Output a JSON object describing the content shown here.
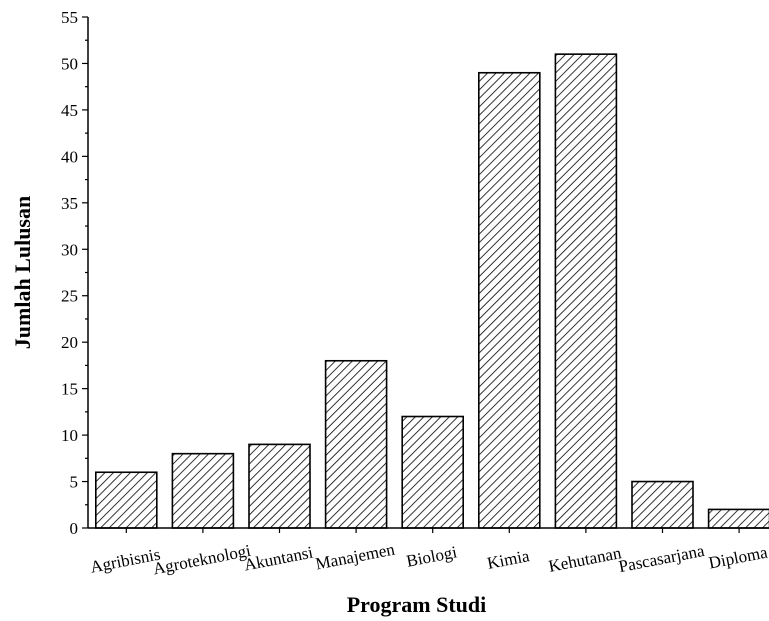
{
  "chart_data": {
    "type": "bar",
    "categories": [
      "Agribisnis",
      "Agroteknologi",
      "Akuntansi",
      "Manajemen",
      "Biologi",
      "Kimia",
      "Kehutanan",
      "Pascasarjana",
      "Diploma"
    ],
    "values": [
      6,
      8,
      9,
      18,
      12,
      49,
      51,
      5,
      2
    ],
    "xlabel": "Program Studi",
    "ylabel": "Jumlah Lulusan",
    "ylim": [
      0,
      55
    ],
    "yticks": [
      0,
      5,
      10,
      15,
      20,
      25,
      30,
      35,
      40,
      45,
      50,
      55
    ],
    "ytick_labels": [
      "0",
      "5",
      "10",
      "15",
      "20",
      "25",
      "30",
      "35",
      "40",
      "45",
      "50",
      "55"
    ],
    "fill_pattern": "diagonal-hatch",
    "bar_color": "#000000",
    "grid": false,
    "legend": "none"
  }
}
